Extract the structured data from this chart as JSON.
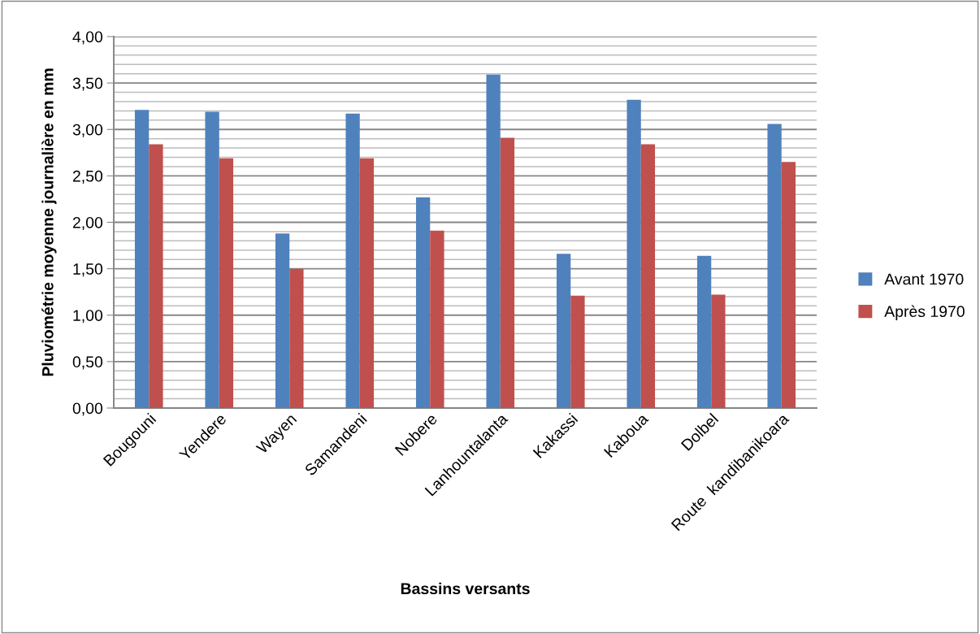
{
  "chart_data": {
    "type": "bar",
    "xlabel": "Bassins versants",
    "ylabel": "Pluviométrie moyenne journalière en mm",
    "categories": [
      "Bougouni",
      "Yendere",
      "Wayen",
      "Samandeni",
      "Nobere",
      "Lanhountalanta",
      "Kakassi",
      "Kaboua",
      "Dolbel",
      "Route  kandibanikoara"
    ],
    "series": [
      {
        "name": "Avant 1970",
        "color": "#4f81bd",
        "values": [
          3.21,
          3.19,
          1.88,
          3.17,
          2.27,
          3.59,
          1.66,
          3.32,
          1.64,
          3.06
        ]
      },
      {
        "name": "Après 1970",
        "color": "#c0504d",
        "values": [
          2.84,
          2.69,
          1.5,
          2.69,
          1.91,
          2.91,
          1.21,
          2.84,
          1.22,
          2.65
        ]
      }
    ],
    "ylim": [
      0,
      4
    ],
    "yticks": [
      {
        "value": 0,
        "label": "0,00"
      },
      {
        "value": 0.1,
        "label": null
      },
      {
        "value": 0.2,
        "label": null
      },
      {
        "value": 0.3,
        "label": null
      },
      {
        "value": 0.4,
        "label": null
      },
      {
        "value": 0.5,
        "label": "0,50"
      },
      {
        "value": 0.6,
        "label": null
      },
      {
        "value": 0.7,
        "label": null
      },
      {
        "value": 0.8,
        "label": null
      },
      {
        "value": 0.9,
        "label": null
      },
      {
        "value": 1,
        "label": "1,00"
      },
      {
        "value": 1.1,
        "label": null
      },
      {
        "value": 1.2,
        "label": null
      },
      {
        "value": 1.3,
        "label": null
      },
      {
        "value": 1.4,
        "label": null
      },
      {
        "value": 1.5,
        "label": "1,50"
      },
      {
        "value": 1.6,
        "label": null
      },
      {
        "value": 1.7,
        "label": null
      },
      {
        "value": 1.8,
        "label": null
      },
      {
        "value": 1.9,
        "label": null
      },
      {
        "value": 2,
        "label": "2,00"
      },
      {
        "value": 2.1,
        "label": null
      },
      {
        "value": 2.2,
        "label": null
      },
      {
        "value": 2.3,
        "label": null
      },
      {
        "value": 2.4,
        "label": null
      },
      {
        "value": 2.5,
        "label": "2,50"
      },
      {
        "value": 2.6,
        "label": null
      },
      {
        "value": 2.7,
        "label": null
      },
      {
        "value": 2.8,
        "label": null
      },
      {
        "value": 2.9,
        "label": null
      },
      {
        "value": 3,
        "label": "3,00"
      },
      {
        "value": 3.1,
        "label": null
      },
      {
        "value": 3.2,
        "label": null
      },
      {
        "value": 3.3,
        "label": null
      },
      {
        "value": 3.4,
        "label": null
      },
      {
        "value": 3.5,
        "label": "3,50"
      },
      {
        "value": 3.6,
        "label": null
      },
      {
        "value": 3.7,
        "label": null
      },
      {
        "value": 3.8,
        "label": null
      },
      {
        "value": 3.9,
        "label": null
      },
      {
        "value": 4,
        "label": "4,00"
      }
    ],
    "grid": "y",
    "legend": "right"
  }
}
